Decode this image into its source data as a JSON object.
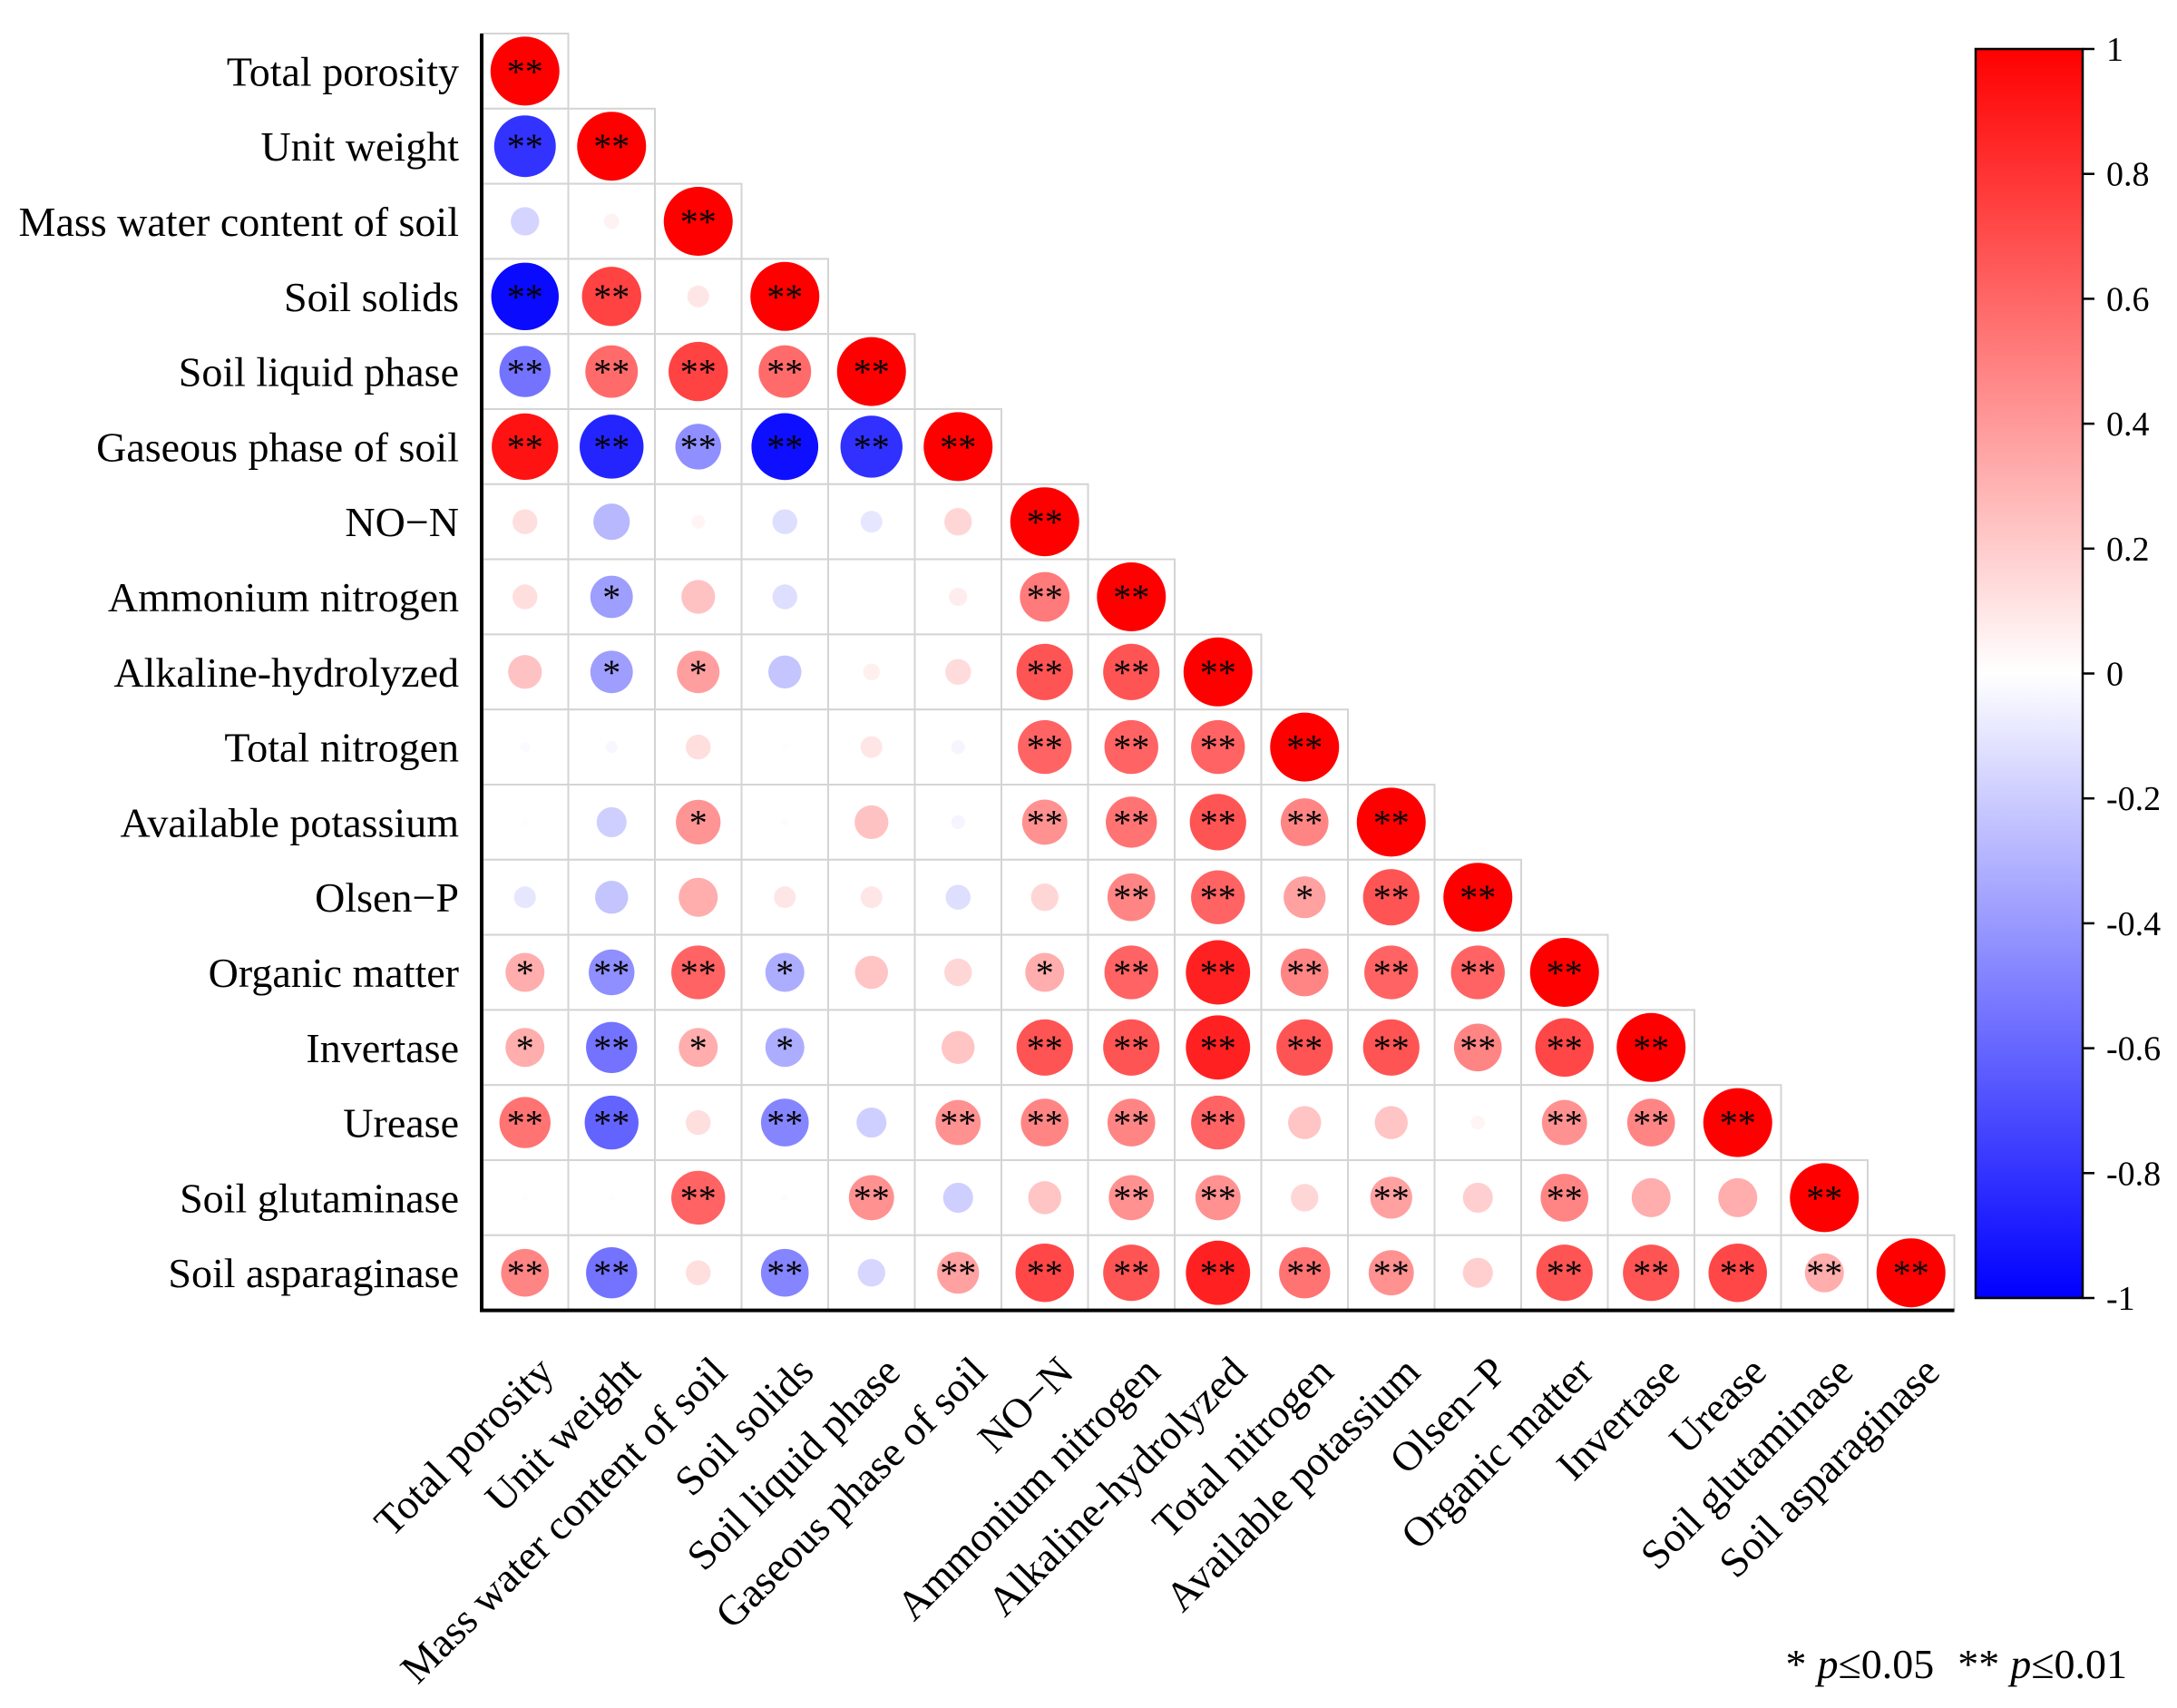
{
  "chart_data": {
    "type": "heatmap",
    "style": "lower-triangle correlation circles",
    "variables": [
      "Total porosity",
      "Unit weight",
      "Mass water content of soil",
      "Soil solids",
      "Soil liquid phase",
      "Gaseous phase of soil",
      "NO−N",
      "Ammonium nitrogen",
      "Alkaline-hydrolyzed",
      "Total nitrogen",
      "Available potassium",
      "Olsen−P",
      "Organic matter",
      "Invertase",
      "Urease",
      "Soil glutaminase",
      "Soil asparaginase"
    ],
    "correlation_matrix_lower": [
      [
        1
      ],
      [
        -0.8,
        1
      ],
      [
        -0.17,
        0.05,
        1
      ],
      [
        -0.96,
        0.74,
        0.1,
        1
      ],
      [
        -0.55,
        0.58,
        0.74,
        0.58,
        1
      ],
      [
        0.93,
        -0.86,
        -0.44,
        -0.94,
        -0.81,
        1
      ],
      [
        0.13,
        -0.28,
        0.04,
        -0.13,
        -0.1,
        0.16,
        1
      ],
      [
        0.13,
        -0.38,
        0.24,
        -0.13,
        0.0,
        0.07,
        0.52,
        1
      ],
      [
        0.24,
        -0.38,
        0.38,
        -0.23,
        0.06,
        0.14,
        0.67,
        0.67,
        1
      ],
      [
        -0.02,
        -0.03,
        0.13,
        0.01,
        0.1,
        -0.04,
        0.61,
        0.61,
        0.61,
        1
      ],
      [
        0.01,
        -0.19,
        0.42,
        -0.01,
        0.24,
        -0.04,
        0.43,
        0.55,
        0.67,
        0.48,
        1
      ],
      [
        -0.1,
        -0.23,
        0.32,
        0.1,
        0.1,
        -0.13,
        0.16,
        0.48,
        0.61,
        0.37,
        0.67,
        1
      ],
      [
        0.32,
        -0.44,
        0.61,
        -0.32,
        0.23,
        0.16,
        0.32,
        0.61,
        0.87,
        0.48,
        0.61,
        0.61,
        1
      ],
      [
        0.32,
        -0.55,
        0.32,
        -0.32,
        0.0,
        0.23,
        0.67,
        0.67,
        0.87,
        0.67,
        0.67,
        0.48,
        0.72,
        1
      ],
      [
        0.55,
        -0.61,
        0.13,
        -0.48,
        -0.19,
        0.43,
        0.48,
        0.48,
        0.61,
        0.23,
        0.23,
        0.04,
        0.43,
        0.48,
        1
      ],
      [
        0.01,
        0.01,
        0.61,
        -0.01,
        0.43,
        -0.19,
        0.23,
        0.43,
        0.43,
        0.16,
        0.37,
        0.19,
        0.48,
        0.32,
        0.32,
        1
      ],
      [
        0.48,
        -0.55,
        0.13,
        -0.48,
        -0.16,
        0.37,
        0.72,
        0.67,
        0.87,
        0.55,
        0.43,
        0.19,
        0.67,
        0.67,
        0.72,
        0.32,
        1
      ]
    ],
    "significance_lower": [
      [
        "**"
      ],
      [
        "**",
        "**"
      ],
      [
        "",
        "",
        "**"
      ],
      [
        "**",
        "**",
        "",
        "**"
      ],
      [
        "**",
        "**",
        "**",
        "**",
        "**"
      ],
      [
        "**",
        "**",
        "**",
        "**",
        "**",
        "**"
      ],
      [
        "",
        "",
        "",
        "",
        "",
        "",
        "**"
      ],
      [
        "",
        "*",
        "",
        "",
        "",
        "",
        "**",
        "**"
      ],
      [
        "",
        "*",
        "*",
        "",
        "",
        "",
        "**",
        "**",
        "**"
      ],
      [
        "",
        "",
        "",
        "",
        "",
        "",
        "**",
        "**",
        "**",
        "**"
      ],
      [
        "",
        "",
        "*",
        "",
        "",
        "",
        "**",
        "**",
        "**",
        "**",
        "**"
      ],
      [
        "",
        "",
        "",
        "",
        "",
        "",
        "",
        "**",
        "**",
        "*",
        "**",
        "**"
      ],
      [
        "*",
        "**",
        "**",
        "*",
        "",
        "",
        "*",
        "**",
        "**",
        "**",
        "**",
        "**",
        "**"
      ],
      [
        "*",
        "**",
        "*",
        "*",
        "",
        "",
        "**",
        "**",
        "**",
        "**",
        "**",
        "**",
        "**",
        "**"
      ],
      [
        "**",
        "**",
        "",
        "**",
        "",
        "**",
        "**",
        "**",
        "**",
        "",
        "",
        "",
        "**",
        "**",
        "**"
      ],
      [
        "",
        "",
        "**",
        "",
        "**",
        "",
        "",
        "**",
        "**",
        "",
        "**",
        "",
        "**",
        "",
        "",
        "**"
      ],
      [
        "**",
        "**",
        "",
        "**",
        "",
        "**",
        "**",
        "**",
        "**",
        "**",
        "**",
        "",
        "**",
        "**",
        "**",
        "**",
        "**"
      ]
    ],
    "value_range": [
      -1,
      1
    ],
    "colorbar": {
      "ticks": [
        1,
        0.8,
        0.6,
        0.4,
        0.2,
        0,
        -0.2,
        -0.4,
        -0.6,
        -0.8,
        -1
      ],
      "tick_labels": [
        "1",
        "0.8",
        "0.6",
        "0.4",
        "0.2",
        "0",
        "-0.2",
        "-0.4",
        "-0.6",
        "-0.8",
        "-1"
      ],
      "placement": "right"
    },
    "significance_legend": {
      "single": {
        "star": "*",
        "p": "p",
        "threshold": "≤0.05"
      },
      "double": {
        "star": "**",
        "p": "p",
        "threshold": "≤0.01"
      }
    }
  },
  "colors": {
    "positive": "#ff0000",
    "zero": "#ffffff",
    "negative": "#0000ff",
    "cell_border": "#d4d4d4",
    "axis": "#000000"
  }
}
